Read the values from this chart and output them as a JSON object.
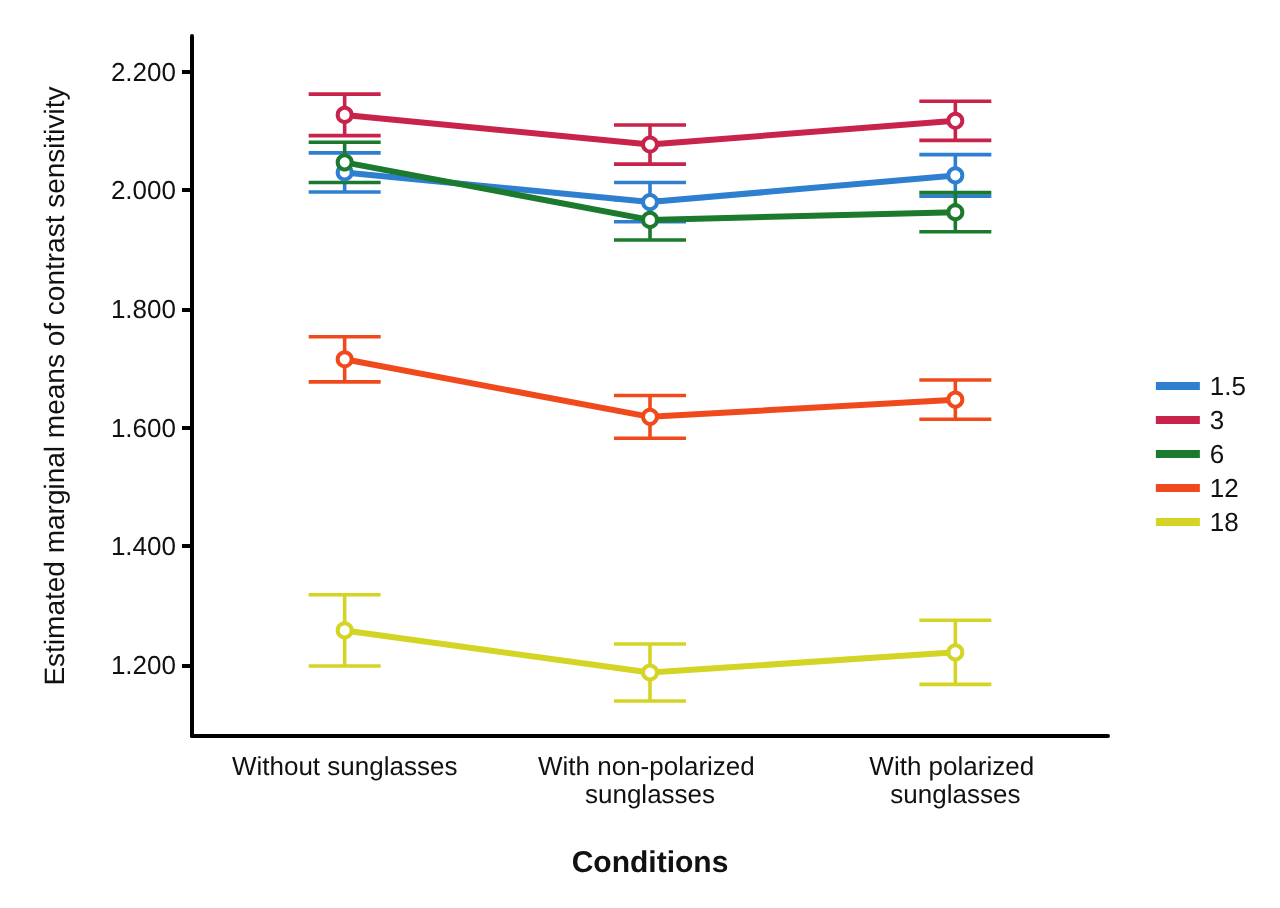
{
  "chart_data": {
    "type": "line",
    "xlabel": "Conditions",
    "ylabel": "Estimated marginal means of contrast sensitivity",
    "categories": [
      "Without sunglasses",
      "With non-polarized sunglasses",
      "With polarized sunglasses"
    ],
    "series": [
      {
        "name": "1.5",
        "color": "#2e7fd0",
        "values": [
          2.03,
          1.98,
          2.025
        ],
        "errors": [
          0.033,
          0.033,
          0.035
        ]
      },
      {
        "name": "3",
        "color": "#c8234a",
        "values": [
          2.127,
          2.077,
          2.117
        ],
        "errors": [
          0.035,
          0.033,
          0.033
        ]
      },
      {
        "name": "6",
        "color": "#1b7a2e",
        "values": [
          2.047,
          1.95,
          1.963
        ],
        "errors": [
          0.034,
          0.034,
          0.033
        ]
      },
      {
        "name": "12",
        "color": "#f04a1c",
        "values": [
          1.715,
          1.618,
          1.647
        ],
        "errors": [
          0.038,
          0.036,
          0.033
        ]
      },
      {
        "name": "18",
        "color": "#d4d424",
        "values": [
          1.258,
          1.187,
          1.221
        ],
        "errors": [
          0.06,
          0.048,
          0.054
        ]
      }
    ],
    "ylim": [
      1.08,
      2.26
    ],
    "yticks": [
      {
        "value": 1.2,
        "label": "1.200"
      },
      {
        "value": 1.4,
        "label": "1.400"
      },
      {
        "value": 1.6,
        "label": "1.600"
      },
      {
        "value": 1.8,
        "label": "1.800"
      },
      {
        "value": 2.0,
        "label": "2.000"
      },
      {
        "value": 2.2,
        "label": "2.200"
      }
    ],
    "grid": false,
    "legend": "right",
    "marker": "circle",
    "line_style": "solid"
  }
}
